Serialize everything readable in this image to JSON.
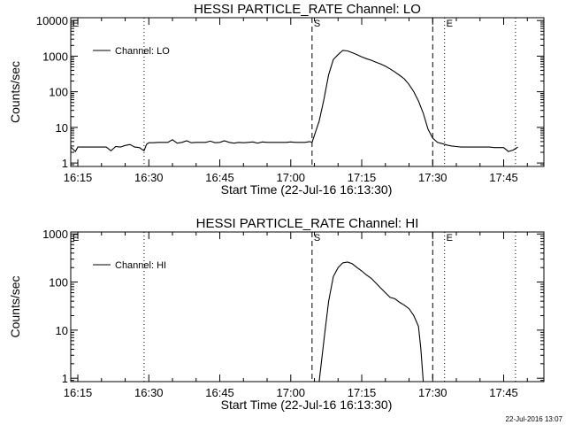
{
  "chart_data": [
    {
      "type": "line",
      "title": "HESSI PARTICLE_RATE Channel: LO",
      "xlabel": "Start Time (22-Jul-16 16:13:30)",
      "ylabel": "Counts/sec",
      "y_scale": "log",
      "ylim": [
        0.8,
        12000
      ],
      "xlim": [
        "16:13:30",
        "17:53:30"
      ],
      "y_ticks": [
        {
          "value": 1,
          "label": "1"
        },
        {
          "value": 10,
          "label": "10"
        },
        {
          "value": 100,
          "label": "100"
        },
        {
          "value": 1000,
          "label": "1000"
        },
        {
          "value": 10000,
          "label": "10000"
        }
      ],
      "x_ticks": [
        "16:15",
        "16:30",
        "16:45",
        "17:00",
        "17:15",
        "17:30",
        "17:45"
      ],
      "legend": {
        "label": "Channel: LO",
        "position": "top-left"
      },
      "markers": [
        {
          "label": "E",
          "time": "16:13:30",
          "style": "none"
        },
        {
          "label": "",
          "time": "16:29:00",
          "style": "dotted"
        },
        {
          "label": "S",
          "time": "17:04:30",
          "style": "dashed"
        },
        {
          "label": "",
          "time": "17:30:00",
          "style": "dashed"
        },
        {
          "label": "E",
          "time": "17:32:30",
          "style": "dotted"
        },
        {
          "label": "",
          "time": "17:47:30",
          "style": "dotted"
        }
      ],
      "series": [
        {
          "name": "Channel: LO",
          "x": [
            "16:13:30",
            "16:14:30",
            "16:15:00",
            "16:16:00",
            "16:17:00",
            "16:18:00",
            "16:19:00",
            "16:20:00",
            "16:21:00",
            "16:22:00",
            "16:23:00",
            "16:24:00",
            "16:25:00",
            "16:26:00",
            "16:27:00",
            "16:28:00",
            "16:29:00",
            "16:29:30",
            "16:30:00",
            "16:31:00",
            "16:32:00",
            "16:33:00",
            "16:34:00",
            "16:35:00",
            "16:36:00",
            "16:37:00",
            "16:38:00",
            "16:39:00",
            "16:40:00",
            "16:41:00",
            "16:42:00",
            "16:43:00",
            "16:44:00",
            "16:45:00",
            "16:46:00",
            "16:47:00",
            "16:48:00",
            "16:49:00",
            "16:50:00",
            "16:51:00",
            "16:52:00",
            "16:53:00",
            "16:54:00",
            "16:55:00",
            "16:56:00",
            "16:57:00",
            "16:58:00",
            "16:59:00",
            "17:00:00",
            "17:01:00",
            "17:02:00",
            "17:03:00",
            "17:04:00",
            "17:04:30",
            "17:05:00",
            "17:06:00",
            "17:07:00",
            "17:08:00",
            "17:09:00",
            "17:10:00",
            "17:11:00",
            "17:12:00",
            "17:13:00",
            "17:14:00",
            "17:15:00",
            "17:16:00",
            "17:17:00",
            "17:18:00",
            "17:19:00",
            "17:20:00",
            "17:21:00",
            "17:22:00",
            "17:23:00",
            "17:24:00",
            "17:25:00",
            "17:26:00",
            "17:27:00",
            "17:28:00",
            "17:29:00",
            "17:30:00",
            "17:31:00",
            "17:32:00",
            "17:33:00",
            "17:34:00",
            "17:35:00",
            "17:36:00",
            "17:37:00",
            "17:38:00",
            "17:39:00",
            "17:40:00",
            "17:41:00",
            "17:42:00",
            "17:43:00",
            "17:44:00",
            "17:45:00",
            "17:46:00",
            "17:47:00",
            "17:48:00"
          ],
          "y": [
            2.8,
            2.1,
            2.8,
            2.8,
            2.8,
            2.8,
            2.8,
            2.8,
            2.8,
            2.2,
            2.9,
            2.8,
            3.1,
            3.3,
            2.8,
            2.7,
            2.2,
            3.3,
            3.7,
            3.7,
            3.8,
            3.8,
            3.8,
            4.5,
            3.6,
            3.8,
            4.2,
            3.7,
            3.8,
            3.8,
            3.8,
            4.1,
            3.7,
            3.8,
            4.2,
            3.8,
            3.6,
            3.8,
            3.7,
            3.8,
            3.9,
            3.6,
            3.9,
            3.8,
            3.8,
            3.8,
            3.8,
            3.8,
            3.9,
            3.8,
            3.8,
            3.8,
            4.0,
            3.8,
            6,
            15,
            60,
            300,
            800,
            1100,
            1450,
            1400,
            1250,
            1100,
            950,
            850,
            770,
            680,
            600,
            520,
            440,
            360,
            290,
            230,
            160,
            100,
            55,
            25,
            9,
            5,
            3.8,
            3.5,
            3.2,
            3.0,
            2.9,
            2.8,
            2.8,
            2.8,
            2.8,
            2.8,
            2.8,
            2.8,
            2.7,
            2.7,
            2.7,
            2.1,
            2.3,
            2.8
          ]
        }
      ]
    },
    {
      "type": "line",
      "title": "HESSI PARTICLE_RATE Channel: HI",
      "xlabel": "Start Time (22-Jul-16 16:13:30)",
      "ylabel": "Counts/sec",
      "y_scale": "log",
      "ylim": [
        0.85,
        1100
      ],
      "xlim": [
        "16:13:30",
        "17:53:30"
      ],
      "y_ticks": [
        {
          "value": 1,
          "label": "1"
        },
        {
          "value": 10,
          "label": "10"
        },
        {
          "value": 100,
          "label": "100"
        },
        {
          "value": 1000,
          "label": "1000"
        }
      ],
      "x_ticks": [
        "16:15",
        "16:30",
        "16:45",
        "17:00",
        "17:15",
        "17:30",
        "17:45"
      ],
      "legend": {
        "label": "Channel: HI",
        "position": "top-left"
      },
      "markers": [
        {
          "label": "E",
          "time": "16:13:30",
          "style": "none"
        },
        {
          "label": "",
          "time": "16:29:00",
          "style": "dotted"
        },
        {
          "label": "S",
          "time": "17:04:30",
          "style": "dashed"
        },
        {
          "label": "",
          "time": "17:30:00",
          "style": "dashed"
        },
        {
          "label": "E",
          "time": "17:32:30",
          "style": "dotted"
        },
        {
          "label": "",
          "time": "17:47:30",
          "style": "dotted"
        }
      ],
      "series": [
        {
          "name": "Channel: HI",
          "x": [
            "17:06:00",
            "17:07:00",
            "17:08:00",
            "17:09:00",
            "17:10:00",
            "17:11:00",
            "17:12:00",
            "17:13:00",
            "17:14:00",
            "17:15:00",
            "17:16:00",
            "17:17:00",
            "17:18:00",
            "17:19:00",
            "17:20:00",
            "17:21:00",
            "17:22:00",
            "17:23:00",
            "17:24:00",
            "17:25:00",
            "17:26:00",
            "17:27:00",
            "17:27:30",
            "17:28:00"
          ],
          "y": [
            0.85,
            6,
            40,
            130,
            200,
            250,
            260,
            240,
            200,
            170,
            140,
            120,
            95,
            75,
            60,
            48,
            45,
            38,
            33,
            28,
            20,
            12,
            4,
            0.85
          ]
        }
      ]
    }
  ],
  "footer_stamp": "22-Jul-2016 13:07"
}
